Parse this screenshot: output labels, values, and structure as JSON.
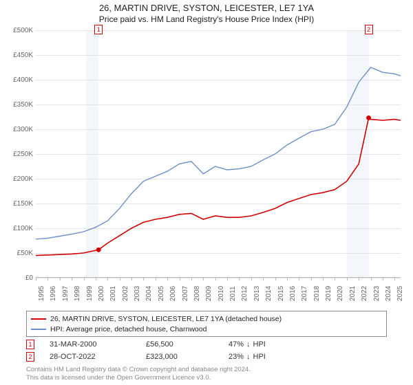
{
  "title": "26, MARTIN DRIVE, SYSTON, LEICESTER, LE7 1YA",
  "subtitle": "Price paid vs. HM Land Registry's House Price Index (HPI)",
  "chart": {
    "type": "line",
    "background_color": "#ffffff",
    "shade_color": "#f3f6fb",
    "grid_color": "#e4e4e4",
    "axis_color": "#bbbbbb",
    "xlim": [
      1995,
      2025.5
    ],
    "ylim": [
      0,
      500000
    ],
    "ytick_step": 50000,
    "yticks": [
      {
        "v": 0,
        "label": "£0"
      },
      {
        "v": 50000,
        "label": "£50K"
      },
      {
        "v": 100000,
        "label": "£100K"
      },
      {
        "v": 150000,
        "label": "£150K"
      },
      {
        "v": 200000,
        "label": "£200K"
      },
      {
        "v": 250000,
        "label": "£250K"
      },
      {
        "v": 300000,
        "label": "£300K"
      },
      {
        "v": 350000,
        "label": "£350K"
      },
      {
        "v": 400000,
        "label": "£400K"
      },
      {
        "v": 450000,
        "label": "£450K"
      },
      {
        "v": 500000,
        "label": "£500K"
      }
    ],
    "xticks": [
      1995,
      1996,
      1997,
      1998,
      1999,
      2000,
      2001,
      2002,
      2003,
      2004,
      2005,
      2006,
      2007,
      2008,
      2009,
      2010,
      2011,
      2012,
      2013,
      2014,
      2015,
      2016,
      2017,
      2018,
      2019,
      2020,
      2021,
      2022,
      2023,
      2024,
      2025
    ],
    "shaded_ranges": [
      {
        "from": 1999.2,
        "to": 2000.25
      },
      {
        "from": 2021.0,
        "to": 2022.83
      }
    ],
    "series": [
      {
        "name": "price_paid",
        "label": "26, MARTIN DRIVE, SYSTON, LEICESTER, LE7 1YA (detached house)",
        "color": "#d00000",
        "line_width": 1.6,
        "data": [
          [
            1995,
            45000
          ],
          [
            1996,
            46000
          ],
          [
            1997,
            47000
          ],
          [
            1998,
            48000
          ],
          [
            1999,
            50000
          ],
          [
            2000.25,
            56500
          ],
          [
            2001,
            70000
          ],
          [
            2002,
            85000
          ],
          [
            2003,
            100000
          ],
          [
            2004,
            112000
          ],
          [
            2005,
            118000
          ],
          [
            2006,
            122000
          ],
          [
            2007,
            128000
          ],
          [
            2008,
            130000
          ],
          [
            2009,
            118000
          ],
          [
            2010,
            125000
          ],
          [
            2011,
            122000
          ],
          [
            2012,
            122000
          ],
          [
            2013,
            125000
          ],
          [
            2014,
            132000
          ],
          [
            2015,
            140000
          ],
          [
            2016,
            152000
          ],
          [
            2017,
            160000
          ],
          [
            2018,
            168000
          ],
          [
            2019,
            172000
          ],
          [
            2020,
            178000
          ],
          [
            2021,
            195000
          ],
          [
            2022,
            230000
          ],
          [
            2022.83,
            323000
          ],
          [
            2023,
            320000
          ],
          [
            2024,
            318000
          ],
          [
            2025,
            320000
          ],
          [
            2025.5,
            318000
          ]
        ]
      },
      {
        "name": "hpi",
        "label": "HPI: Average price, detached house, Charnwood",
        "color": "#6d8fc8",
        "line_width": 1.4,
        "data": [
          [
            1995,
            78000
          ],
          [
            1996,
            80000
          ],
          [
            1997,
            84000
          ],
          [
            1998,
            88000
          ],
          [
            1999,
            93000
          ],
          [
            2000,
            102000
          ],
          [
            2001,
            115000
          ],
          [
            2002,
            140000
          ],
          [
            2003,
            170000
          ],
          [
            2004,
            195000
          ],
          [
            2005,
            205000
          ],
          [
            2006,
            215000
          ],
          [
            2007,
            230000
          ],
          [
            2008,
            235000
          ],
          [
            2009,
            210000
          ],
          [
            2010,
            225000
          ],
          [
            2011,
            218000
          ],
          [
            2012,
            220000
          ],
          [
            2013,
            225000
          ],
          [
            2014,
            238000
          ],
          [
            2015,
            250000
          ],
          [
            2016,
            268000
          ],
          [
            2017,
            282000
          ],
          [
            2018,
            295000
          ],
          [
            2019,
            300000
          ],
          [
            2020,
            310000
          ],
          [
            2021,
            345000
          ],
          [
            2022,
            395000
          ],
          [
            2023,
            425000
          ],
          [
            2024,
            415000
          ],
          [
            2025,
            412000
          ],
          [
            2025.5,
            408000
          ]
        ]
      }
    ],
    "point_markers": [
      {
        "n": "1",
        "x": 2000.25,
        "y": 56500,
        "dot_color": "#d00000"
      },
      {
        "n": "2",
        "x": 2022.83,
        "y": 323000,
        "dot_color": "#d00000"
      }
    ]
  },
  "legend": {
    "items": [
      {
        "color": "#d00000",
        "label": "26, MARTIN DRIVE, SYSTON, LEICESTER, LE7 1YA (detached house)"
      },
      {
        "color": "#6d8fc8",
        "label": "HPI: Average price, detached house, Charnwood"
      }
    ]
  },
  "points_table": [
    {
      "n": "1",
      "date": "31-MAR-2000",
      "price": "£56,500",
      "delta": "47%",
      "arrow": "↓",
      "suffix": "HPI"
    },
    {
      "n": "2",
      "date": "28-OCT-2022",
      "price": "£323,000",
      "delta": "23%",
      "arrow": "↓",
      "suffix": "HPI"
    }
  ],
  "footer": {
    "line1": "Contains HM Land Registry data © Crown copyright and database right 2024.",
    "line2": "This data is licensed under the Open Government Licence v3.0."
  }
}
